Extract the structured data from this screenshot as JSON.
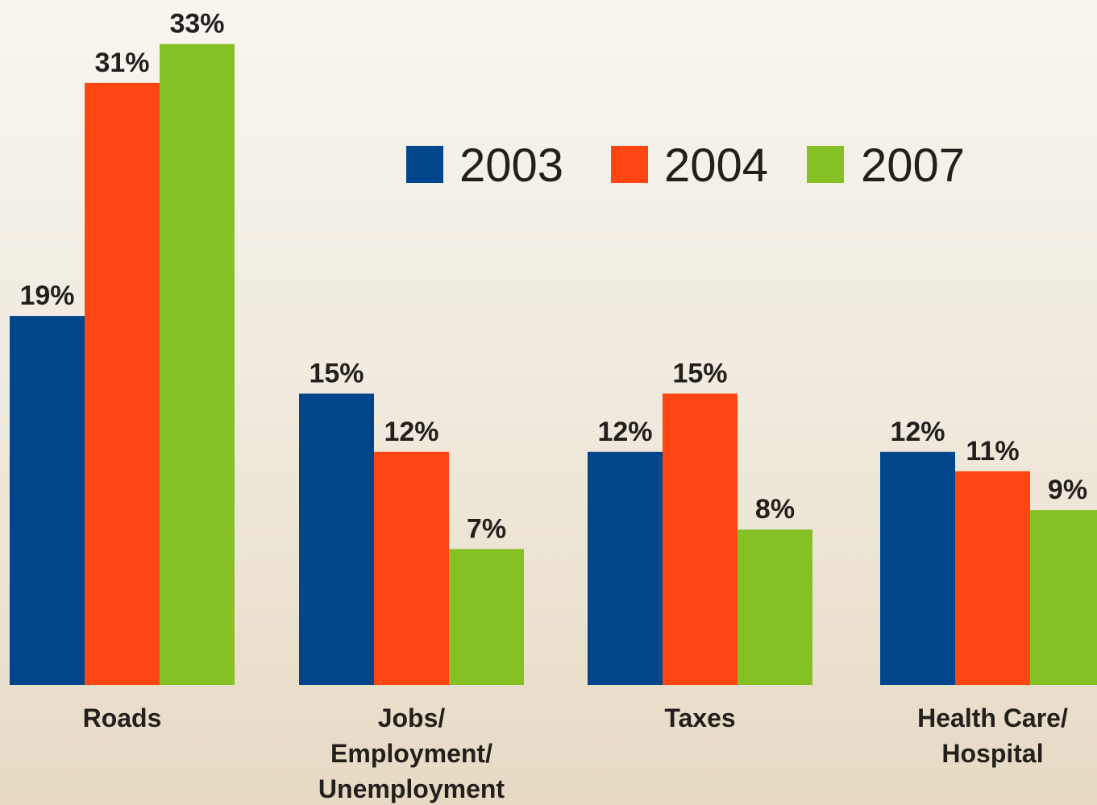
{
  "chart_data": {
    "type": "bar",
    "categories": [
      "Roads",
      "Jobs/\nEmployment/\nUnemployment",
      "Taxes",
      "Health Care/\nHospital"
    ],
    "series": [
      {
        "name": "2003",
        "values": [
          19,
          15,
          12,
          12
        ],
        "color": "#00468a"
      },
      {
        "name": "2004",
        "values": [
          31,
          12,
          15,
          11
        ],
        "color": "#ff4512"
      },
      {
        "name": "2007",
        "values": [
          33,
          7,
          8,
          9
        ],
        "color": "#85c125"
      }
    ],
    "value_labels": [
      [
        "19%",
        "15%",
        "12%",
        "12%"
      ],
      [
        "31%",
        "12%",
        "15%",
        "11%"
      ],
      [
        "33%",
        "7%",
        "8%",
        "9%"
      ]
    ],
    "unit": "%",
    "ylim": [
      0,
      35
    ],
    "grid": false,
    "legend_position": "top-right"
  }
}
